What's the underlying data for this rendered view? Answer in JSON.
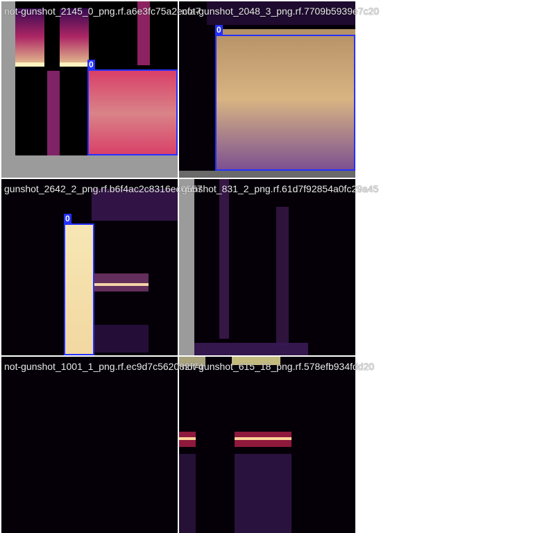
{
  "tiles": [
    {
      "name": "not-gunshot_2145_0_png.rf.a6e3fc75a2ecfa7",
      "label_class": "0"
    },
    {
      "name": "not-gunshot_2048_3_png.rf.7709b5939e7c20",
      "label_class": "0"
    },
    {
      "name": "gunshot_2642_2_png.rf.b6f4ac2c8316ec0557",
      "label_class": "0"
    },
    {
      "name": "gunshot_831_2_png.rf.61d7f92854a0fc29a45",
      "label_class": ""
    },
    {
      "name": "not-gunshot_1001_1_png.rf.ec9d7c562082f74",
      "label_class": ""
    },
    {
      "name": "not-gunshot_615_18_png.rf.578efb934fdd20",
      "label_class": ""
    }
  ],
  "colors": {
    "box": "#2430ff",
    "pad": "#9b9b9b",
    "bg": "#000000"
  }
}
